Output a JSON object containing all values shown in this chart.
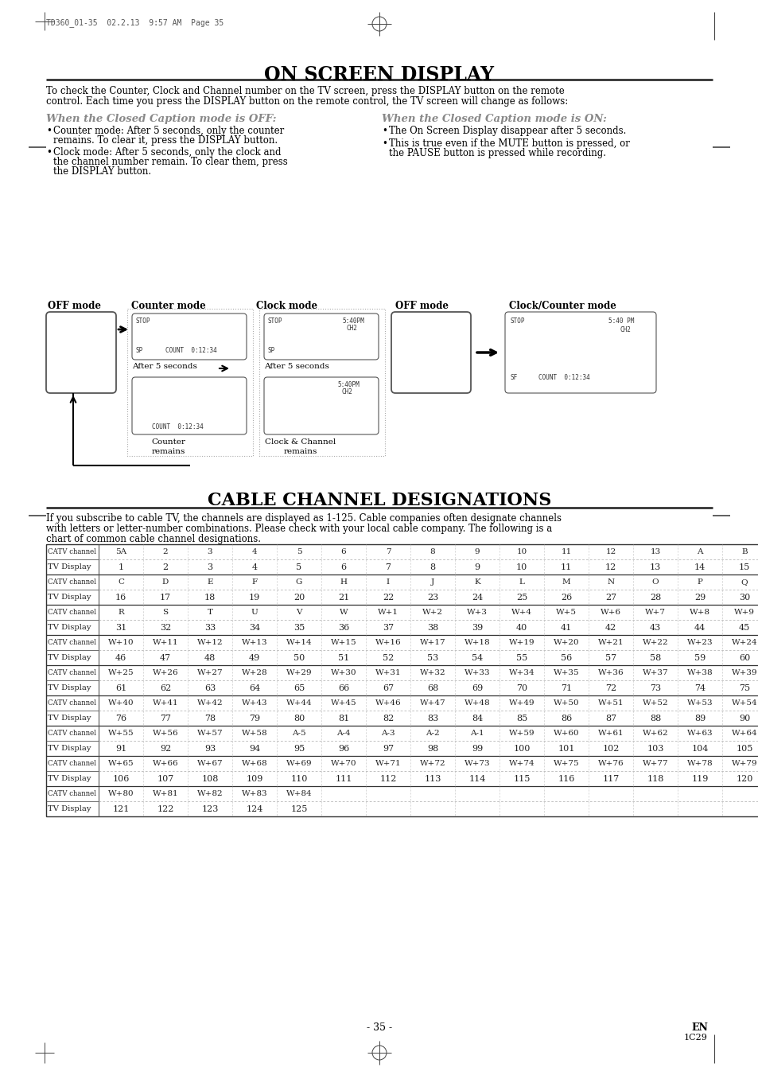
{
  "page_header": "TD360_01-35  02.2.13  9:57 AM  Page 35",
  "main_title": "ON SCREEN DISPLAY",
  "cable_title": "CABLE CHANNEL DESIGNATIONS",
  "intro_text": "To check the Counter, Clock and Channel number on the TV screen, press the DISPLAY button on the remote\ncontrol. Each time you press the DISPLAY button on the remote control, the TV screen will change as follows:",
  "cable_intro_text": "If you subscribe to cable TV, the channels are displayed as 1-125. Cable companies often designate channels\nwith letters or letter-number combinations. Please check with your local cable company. The following is a\nchart of common cable channel designations.",
  "off_subtitle": "When the Closed Caption mode is OFF:",
  "on_subtitle": "When the Closed Caption mode is ON:",
  "off_bullets": [
    "Counter mode: After 5 seconds, only the counter\nremains. To clear it, press the DISPLAY button.",
    "Clock mode: After 5 seconds, only the clock and\nthe channel number remain. To clear them, press\nthe DISPLAY button."
  ],
  "on_bullets": [
    "The On Screen Display disappear after 5 seconds.",
    "This is true even if the MUTE button is pressed, or\nthe PAUSE button is pressed while recording."
  ],
  "table_rows": [
    [
      "CATV channel",
      "5A",
      "2",
      "3",
      "4",
      "5",
      "6",
      "7",
      "8",
      "9",
      "10",
      "11",
      "12",
      "13",
      "A",
      "B"
    ],
    [
      "TV Display",
      "1",
      "2",
      "3",
      "4",
      "5",
      "6",
      "7",
      "8",
      "9",
      "10",
      "11",
      "12",
      "13",
      "14",
      "15"
    ],
    [
      "CATV channel",
      "C",
      "D",
      "E",
      "F",
      "G",
      "H",
      "I",
      "J",
      "K",
      "L",
      "M",
      "N",
      "O",
      "P",
      "Q"
    ],
    [
      "TV Display",
      "16",
      "17",
      "18",
      "19",
      "20",
      "21",
      "22",
      "23",
      "24",
      "25",
      "26",
      "27",
      "28",
      "29",
      "30"
    ],
    [
      "CATV channel",
      "R",
      "S",
      "T",
      "U",
      "V",
      "W",
      "W+1",
      "W+2",
      "W+3",
      "W+4",
      "W+5",
      "W+6",
      "W+7",
      "W+8",
      "W+9"
    ],
    [
      "TV Display",
      "31",
      "32",
      "33",
      "34",
      "35",
      "36",
      "37",
      "38",
      "39",
      "40",
      "41",
      "42",
      "43",
      "44",
      "45"
    ],
    [
      "CATV channel",
      "W+10",
      "W+11",
      "W+12",
      "W+13",
      "W+14",
      "W+15",
      "W+16",
      "W+17",
      "W+18",
      "W+19",
      "W+20",
      "W+21",
      "W+22",
      "W+23",
      "W+24"
    ],
    [
      "TV Display",
      "46",
      "47",
      "48",
      "49",
      "50",
      "51",
      "52",
      "53",
      "54",
      "55",
      "56",
      "57",
      "58",
      "59",
      "60"
    ],
    [
      "CATV channel",
      "W+25",
      "W+26",
      "W+27",
      "W+28",
      "W+29",
      "W+30",
      "W+31",
      "W+32",
      "W+33",
      "W+34",
      "W+35",
      "W+36",
      "W+37",
      "W+38",
      "W+39"
    ],
    [
      "TV Display",
      "61",
      "62",
      "63",
      "64",
      "65",
      "66",
      "67",
      "68",
      "69",
      "70",
      "71",
      "72",
      "73",
      "74",
      "75"
    ],
    [
      "CATV channel",
      "W+40",
      "W+41",
      "W+42",
      "W+43",
      "W+44",
      "W+45",
      "W+46",
      "W+47",
      "W+48",
      "W+49",
      "W+50",
      "W+51",
      "W+52",
      "W+53",
      "W+54"
    ],
    [
      "TV Display",
      "76",
      "77",
      "78",
      "79",
      "80",
      "81",
      "82",
      "83",
      "84",
      "85",
      "86",
      "87",
      "88",
      "89",
      "90"
    ],
    [
      "CATV channel",
      "W+55",
      "W+56",
      "W+57",
      "W+58",
      "A-5",
      "A-4",
      "A-3",
      "A-2",
      "A-1",
      "W+59",
      "W+60",
      "W+61",
      "W+62",
      "W+63",
      "W+64"
    ],
    [
      "TV Display",
      "91",
      "92",
      "93",
      "94",
      "95",
      "96",
      "97",
      "98",
      "99",
      "100",
      "101",
      "102",
      "103",
      "104",
      "105"
    ],
    [
      "CATV channel",
      "W+65",
      "W+66",
      "W+67",
      "W+68",
      "W+69",
      "W+70",
      "W+71",
      "W+72",
      "W+73",
      "W+74",
      "W+75",
      "W+76",
      "W+77",
      "W+78",
      "W+79"
    ],
    [
      "TV Display",
      "106",
      "107",
      "108",
      "109",
      "110",
      "111",
      "112",
      "113",
      "114",
      "115",
      "116",
      "117",
      "118",
      "119",
      "120"
    ],
    [
      "CATV channel",
      "W+80",
      "W+81",
      "W+82",
      "W+83",
      "W+84",
      "",
      "",
      "",
      "",
      "",
      "",
      "",
      "",
      "",
      ""
    ],
    [
      "TV Display",
      "121",
      "122",
      "123",
      "124",
      "125",
      "",
      "",
      "",
      "",
      "",
      "",
      "",
      "",
      "",
      ""
    ]
  ],
  "page_num": "- 35 -",
  "page_en": "EN",
  "page_code": "1C29",
  "bg_color": "#ffffff"
}
